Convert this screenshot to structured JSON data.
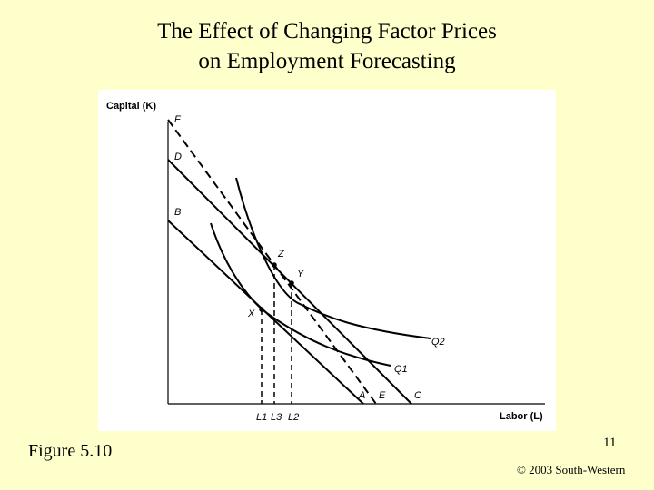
{
  "slide": {
    "title_line1": "The Effect of Changing Factor Prices",
    "title_line2": "on Employment Forecasting",
    "figure_label": "Figure 5.10",
    "page_number": "11",
    "copyright": "© 2003 South-Western"
  },
  "diagram": {
    "y_axis_label": "Capital (K)",
    "x_axis_label": "Labor (L)",
    "intercepts_vertical": [
      "F",
      "D",
      "B"
    ],
    "intercepts_horizontal": [
      "A",
      "E",
      "C"
    ],
    "points": [
      "Z",
      "Y",
      "X"
    ],
    "curves": [
      "Q2",
      "Q1"
    ],
    "labor_ticks": [
      "L1",
      "L3",
      "L2"
    ]
  }
}
